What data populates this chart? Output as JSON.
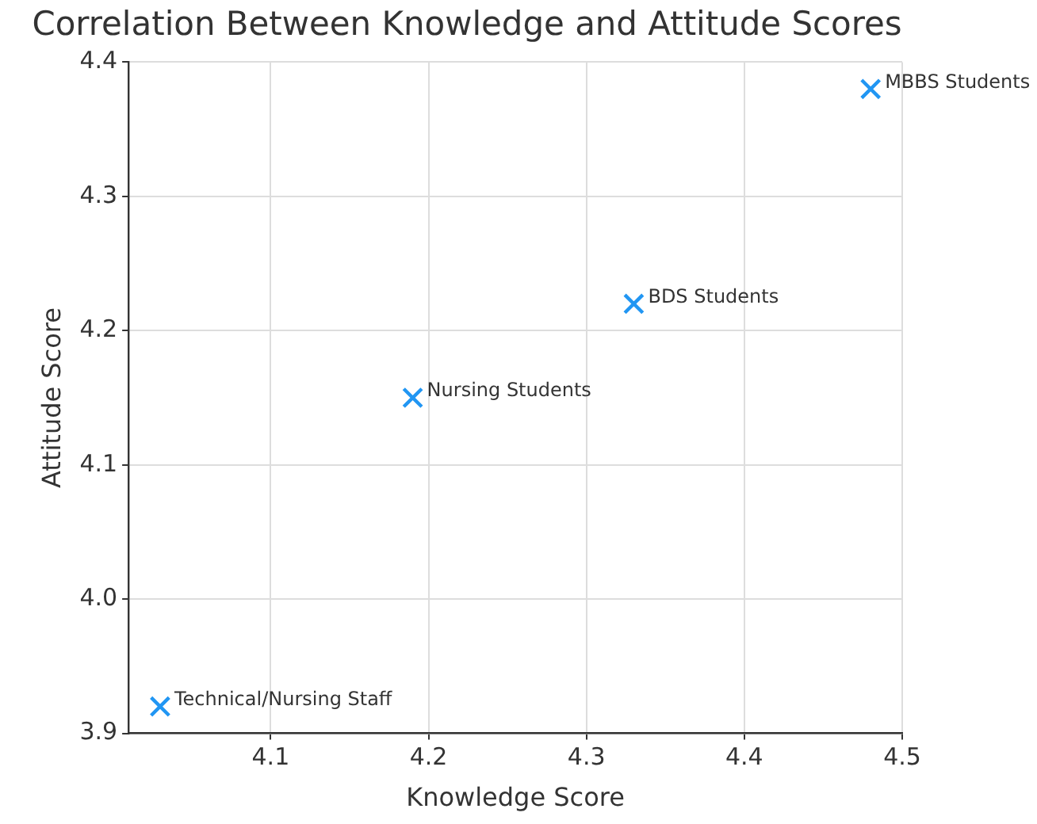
{
  "chart_data": {
    "type": "scatter",
    "title": "Correlation Between Knowledge and Attitude Scores",
    "xlabel": "Knowledge Score",
    "ylabel": "Attitude Score",
    "x": [
      4.03,
      4.19,
      4.33,
      4.48
    ],
    "series": [
      {
        "color": "#2196f3",
        "values": [
          3.92,
          4.15,
          4.22,
          4.38
        ]
      }
    ],
    "annotations": [
      {
        "text": "Technical/Nursing Staff",
        "x": 4.03,
        "y": 3.92
      },
      {
        "text": "Nursing Students",
        "x": 4.19,
        "y": 4.15
      },
      {
        "text": "BDS Students",
        "x": 4.33,
        "y": 4.22
      },
      {
        "text": "MBBS Students",
        "x": 4.48,
        "y": 4.38
      }
    ],
    "xlim": [
      4.01,
      4.5
    ],
    "ylim": [
      3.9,
      4.4
    ],
    "xticks": [
      4.1,
      4.2,
      4.3,
      4.4,
      4.5
    ],
    "yticks": [
      {
        "value": 3.9,
        "label": "3.9"
      },
      {
        "value": 4.0,
        "label": "4.0"
      },
      {
        "value": 4.1,
        "label": "4.1"
      },
      {
        "value": 4.2,
        "label": "4.2"
      },
      {
        "value": 4.3,
        "label": "4.3"
      },
      {
        "value": 4.4,
        "label": "4.4"
      }
    ],
    "grid": true,
    "legend": false,
    "marker": "cross"
  }
}
